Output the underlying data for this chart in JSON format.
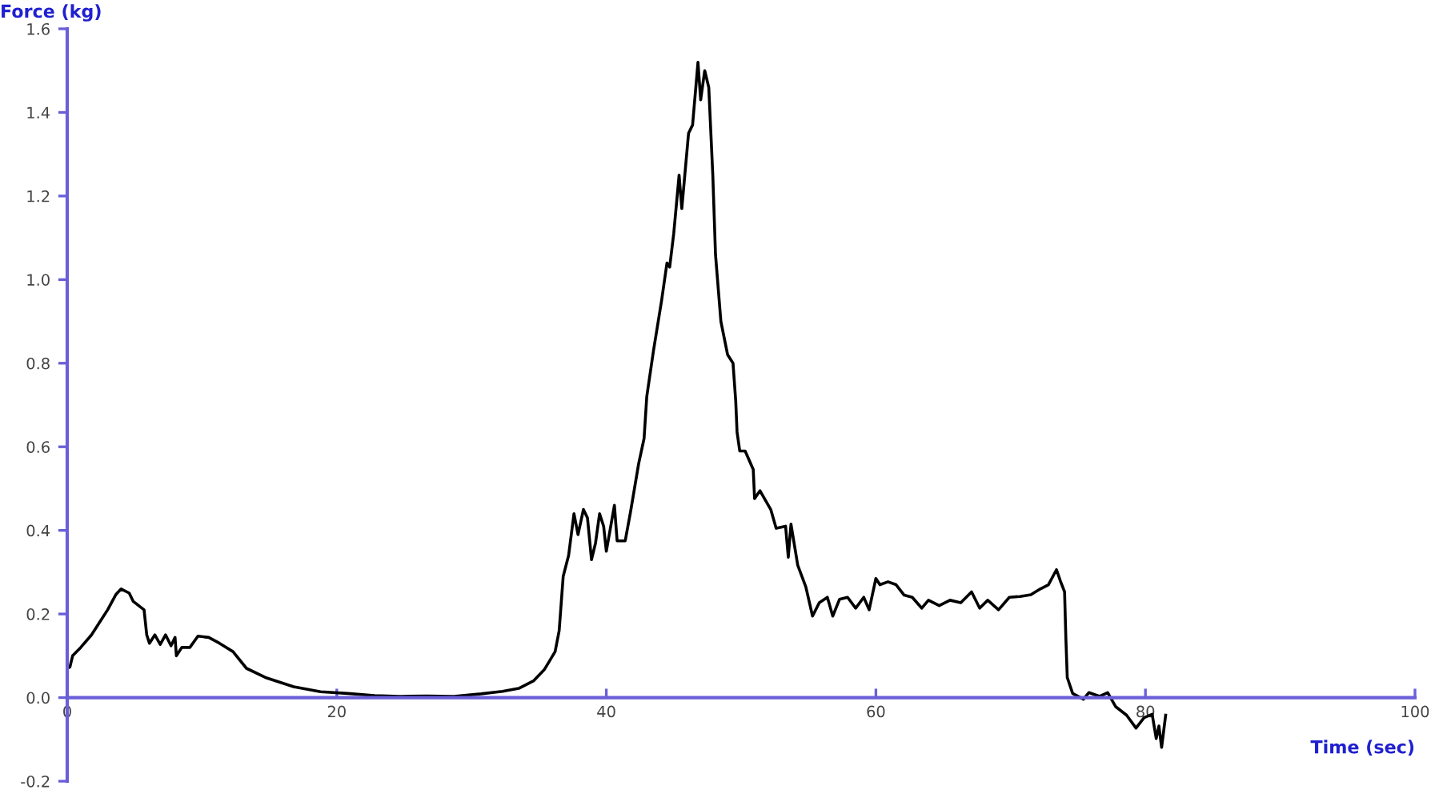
{
  "chart_data": {
    "type": "line",
    "xlabel": "Time (sec)",
    "ylabel": "Force (kg)",
    "xlim": [
      0,
      100
    ],
    "xticks": [
      0,
      20,
      40,
      60,
      80,
      100
    ],
    "ylim": [
      -0.2,
      1.6
    ],
    "yticks": [
      -0.2,
      {
        "value": 0,
        "label": "0.0"
      },
      0.2,
      0.4,
      0.6,
      0.8,
      {
        "value": 1,
        "label": "1.0"
      },
      1.2,
      1.4,
      1.6
    ],
    "grid": false,
    "legend": false,
    "marker": "none",
    "line_style": "solid",
    "series": [
      {
        "color": "#000000",
        "x": [
          0,
          0.2,
          0.4,
          1.0,
          1.8,
          2.4,
          3.0,
          3.6,
          4.0,
          4.6,
          4.9,
          5.7,
          5.9,
          6.1,
          6.5,
          6.9,
          7.3,
          7.7,
          8.0,
          8.1,
          8.5,
          9.1,
          9.7,
          10.5,
          11.3,
          12.3,
          13.3,
          14.8,
          16.8,
          18.8,
          20.8,
          22.8,
          24.7,
          26.7,
          28.7,
          30.7,
          32.3,
          33.5,
          34.6,
          35.4,
          36.2,
          36.5,
          36.8,
          37.2,
          37.6,
          37.9,
          38.3,
          38.6,
          38.9,
          39.2,
          39.5,
          39.8,
          40.0,
          40.6,
          40.8,
          41.4,
          41.8,
          42.4,
          42.8,
          43.0,
          43.5,
          44.1,
          44.5,
          44.7,
          45.0,
          45.4,
          45.6,
          46.1,
          46.4,
          46.8,
          47.0,
          47.3,
          47.6,
          47.9,
          48.1,
          48.5,
          49.0,
          49.4,
          49.6,
          49.7,
          49.9,
          50.3,
          50.9,
          51.0,
          51.4,
          52.2,
          52.6,
          53.3,
          53.5,
          53.7,
          54.2,
          54.8,
          55.3,
          55.8,
          56.4,
          56.8,
          57.3,
          57.9,
          58.5,
          59.1,
          59.5,
          60.0,
          60.3,
          60.9,
          61.5,
          62.1,
          62.7,
          63.4,
          63.9,
          64.7,
          65.5,
          66.3,
          67.1,
          67.7,
          68.3,
          69.1,
          69.9,
          70.7,
          71.5,
          72.2,
          72.8,
          73.4,
          73.7,
          74.0,
          74.1,
          74.2,
          74.6,
          75.4,
          75.8,
          76.6,
          77.2,
          77.8,
          78.6,
          79.3,
          79.9,
          80.5,
          80.8,
          81.0,
          81.2,
          81.5
        ],
        "values": [
          0.07,
          0.073,
          0.1,
          0.12,
          0.15,
          0.18,
          0.21,
          0.246,
          0.26,
          0.25,
          0.23,
          0.21,
          0.15,
          0.13,
          0.15,
          0.127,
          0.15,
          0.124,
          0.144,
          0.1,
          0.12,
          0.12,
          0.147,
          0.144,
          0.13,
          0.11,
          0.07,
          0.047,
          0.026,
          0.014,
          0.01,
          0.005,
          0.003,
          0.004,
          0.003,
          0.009,
          0.015,
          0.022,
          0.04,
          0.067,
          0.11,
          0.16,
          0.29,
          0.34,
          0.44,
          0.39,
          0.45,
          0.43,
          0.33,
          0.37,
          0.44,
          0.41,
          0.35,
          0.46,
          0.375,
          0.375,
          0.445,
          0.56,
          0.62,
          0.72,
          0.83,
          0.95,
          1.04,
          1.03,
          1.11,
          1.25,
          1.17,
          1.35,
          1.37,
          1.52,
          1.43,
          1.5,
          1.46,
          1.25,
          1.06,
          0.9,
          0.82,
          0.8,
          0.71,
          0.635,
          0.59,
          0.59,
          0.546,
          0.476,
          0.495,
          0.45,
          0.405,
          0.41,
          0.336,
          0.415,
          0.317,
          0.265,
          0.195,
          0.227,
          0.24,
          0.195,
          0.235,
          0.24,
          0.214,
          0.24,
          0.21,
          0.285,
          0.27,
          0.277,
          0.27,
          0.245,
          0.24,
          0.214,
          0.233,
          0.22,
          0.233,
          0.227,
          0.253,
          0.214,
          0.233,
          0.21,
          0.24,
          0.242,
          0.246,
          0.26,
          0.27,
          0.306,
          0.278,
          0.253,
          0.138,
          0.048,
          0.01,
          -0.004,
          0.012,
          0.003,
          0.012,
          -0.022,
          -0.042,
          -0.073,
          -0.048,
          -0.04,
          -0.098,
          -0.068,
          -0.119,
          -0.042
        ]
      }
    ]
  }
}
